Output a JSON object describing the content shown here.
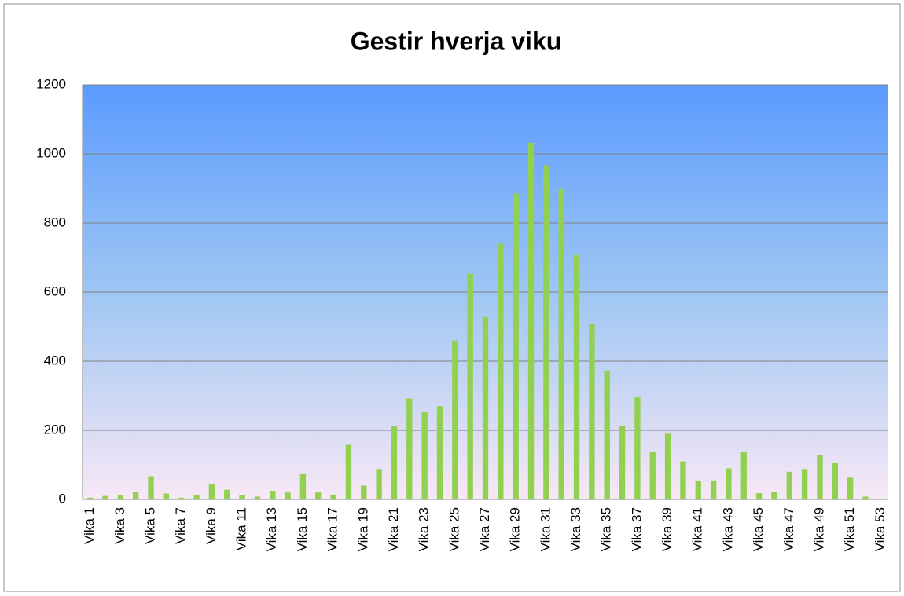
{
  "chart_data": {
    "type": "bar",
    "title": "Gestir hverja viku",
    "categories": [
      "Vika 1",
      null,
      "Vika 3",
      null,
      "Vika 5",
      null,
      "Vika 7",
      null,
      "Vika 9",
      null,
      "Vika 11",
      null,
      "Vika 13",
      null,
      "Vika 15",
      null,
      "Vika 17",
      null,
      "Vika 19",
      null,
      "Vika 21",
      null,
      "Vika 23",
      null,
      "Vika 25",
      null,
      "Vika 27",
      null,
      "Vika 29",
      null,
      "Vika 31",
      null,
      "Vika 33",
      null,
      "Vika 35",
      null,
      "Vika 37",
      null,
      "Vika 39",
      null,
      "Vika 41",
      null,
      "Vika 43",
      null,
      "Vika 45",
      null,
      "Vika 47",
      null,
      "Vika 49",
      null,
      "Vika 51",
      null,
      "Vika 53"
    ],
    "values": [
      5,
      10,
      12,
      22,
      67,
      17,
      5,
      13,
      43,
      28,
      12,
      8,
      25,
      20,
      73,
      20,
      14,
      158,
      40,
      88,
      213,
      292,
      252,
      270,
      460,
      653,
      528,
      740,
      885,
      1032,
      967,
      898,
      707,
      507,
      373,
      213,
      295,
      137,
      190,
      110,
      53,
      55,
      90,
      137,
      18,
      22,
      80,
      88,
      128,
      107,
      63,
      8,
      2
    ],
    "color": "#92d050",
    "ylim": [
      0,
      1200
    ],
    "yticks": [
      0,
      200,
      400,
      600,
      800,
      1000,
      1200
    ],
    "grid": true
  }
}
